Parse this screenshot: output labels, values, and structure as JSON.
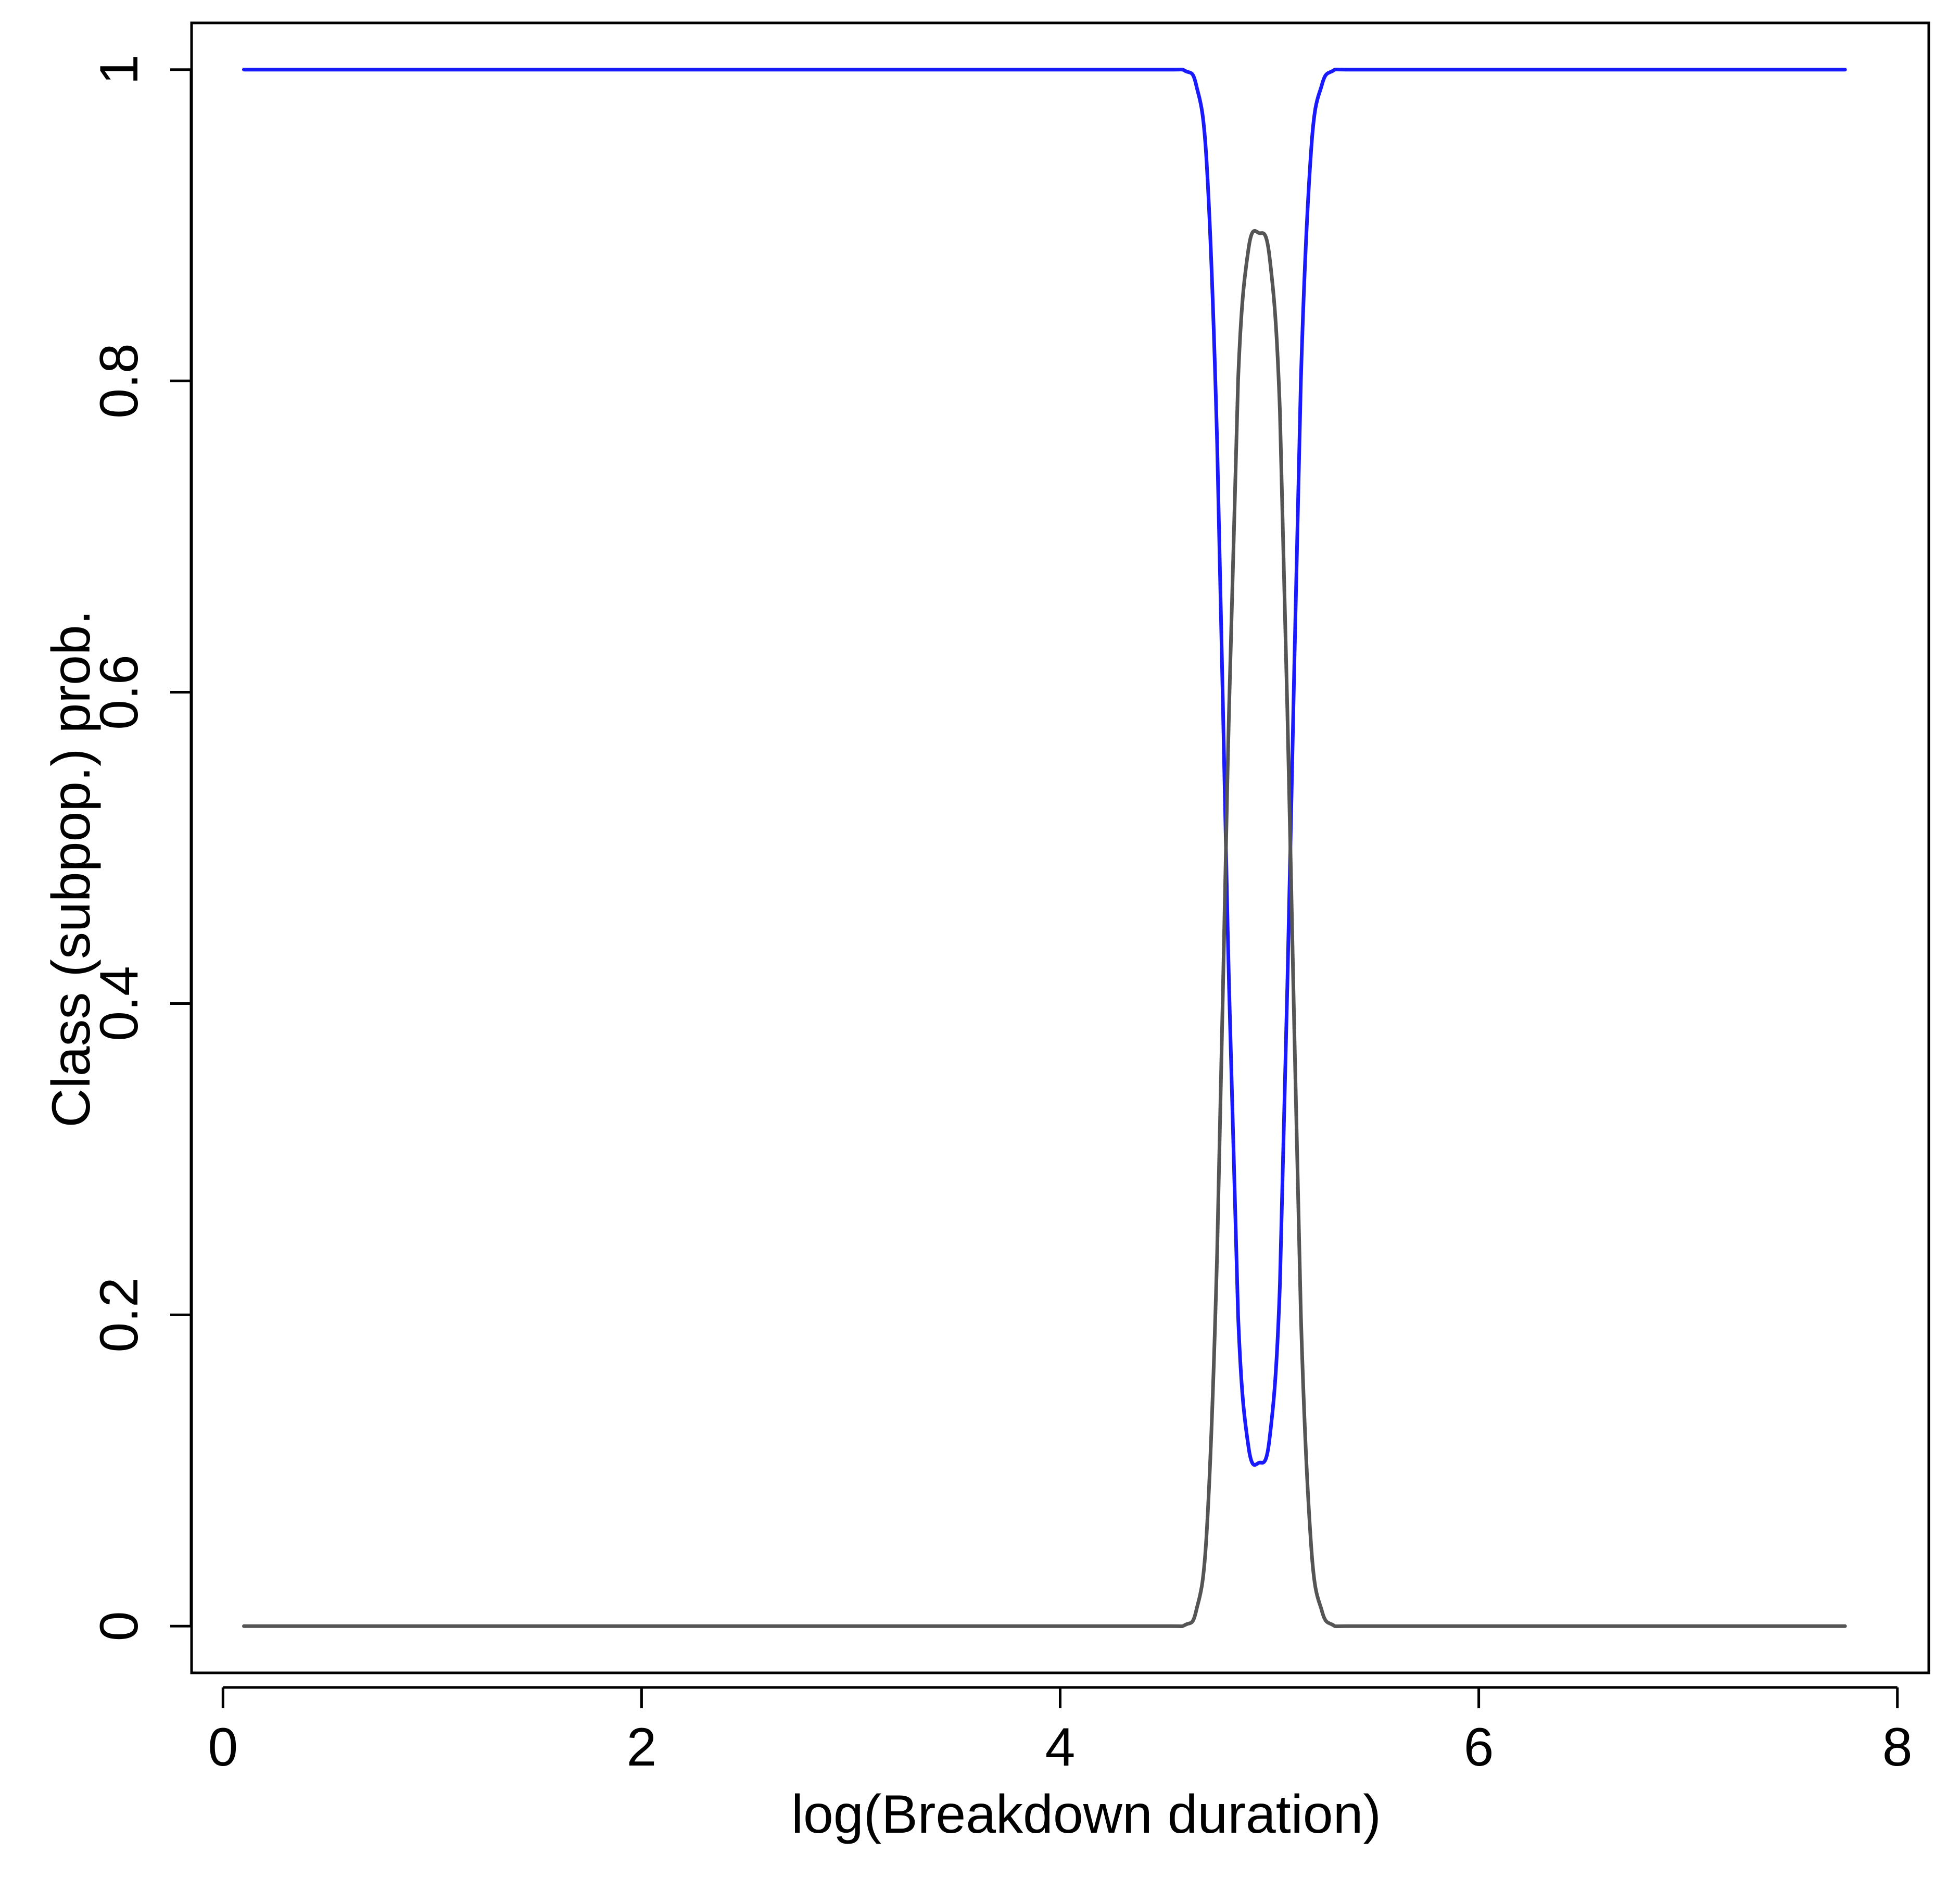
{
  "chart_data": {
    "type": "line",
    "title": "",
    "xlabel": "log(Breakdown duration)",
    "ylabel": "Class (subpop.) prob.",
    "xlim": [
      -0.15,
      8.15
    ],
    "ylim": [
      -0.03,
      1.03
    ],
    "x_ticks": [
      0,
      2,
      4,
      6,
      8
    ],
    "x_tick_labels": [
      "0",
      "2",
      "4",
      "6",
      "8"
    ],
    "y_ticks": [
      0,
      0.2,
      0.4,
      0.6,
      0.8,
      1
    ],
    "y_tick_labels": [
      "0",
      "0.2",
      "0.4",
      "0.6",
      "0.8",
      "1"
    ],
    "grid": false,
    "legend": "none",
    "series": [
      {
        "color": "#1a1aff",
        "x": [
          0.1,
          1.0,
          2.0,
          3.0,
          4.0,
          4.5,
          4.6,
          4.65,
          4.7,
          4.75,
          4.8,
          4.85,
          4.9,
          4.95,
          5.0,
          5.05,
          5.1,
          5.15,
          5.2,
          5.25,
          5.3,
          5.4,
          6.0,
          7.0,
          7.75
        ],
        "y": [
          1,
          1,
          1,
          1,
          1,
          1,
          0.999,
          0.99,
          0.94,
          0.76,
          0.45,
          0.2,
          0.115,
          0.105,
          0.12,
          0.22,
          0.5,
          0.8,
          0.95,
          0.99,
          0.999,
          1,
          1,
          1,
          1
        ]
      },
      {
        "color": "#555555",
        "x": [
          0.1,
          1.0,
          2.0,
          3.0,
          4.0,
          4.5,
          4.6,
          4.65,
          4.7,
          4.75,
          4.8,
          4.85,
          4.9,
          4.95,
          5.0,
          5.05,
          5.1,
          5.15,
          5.2,
          5.25,
          5.3,
          5.4,
          6.0,
          7.0,
          7.75
        ],
        "y": [
          0,
          0,
          0,
          0,
          0,
          0,
          0.001,
          0.01,
          0.06,
          0.24,
          0.55,
          0.8,
          0.885,
          0.895,
          0.88,
          0.78,
          0.5,
          0.2,
          0.05,
          0.01,
          0.001,
          0,
          0,
          0,
          0
        ]
      }
    ]
  }
}
